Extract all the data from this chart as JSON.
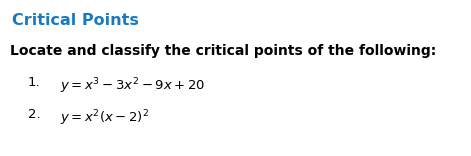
{
  "title": "Critical Points",
  "title_color": "#1a7abf",
  "title_fontsize": 11.5,
  "subtitle": "Locate and classify the critical points of the following:",
  "subtitle_fontsize": 10,
  "item1_num": "1.",
  "item1_eq": "$y = x^3 - 3x^2 - 9x + 20$",
  "item2_num": "2.",
  "item2_eq": "$y = x^2(x - 2)^2$",
  "item_fontsize": 9.5,
  "background_color": "#ffffff",
  "fig_width": 4.71,
  "fig_height": 1.56,
  "dpi": 100
}
